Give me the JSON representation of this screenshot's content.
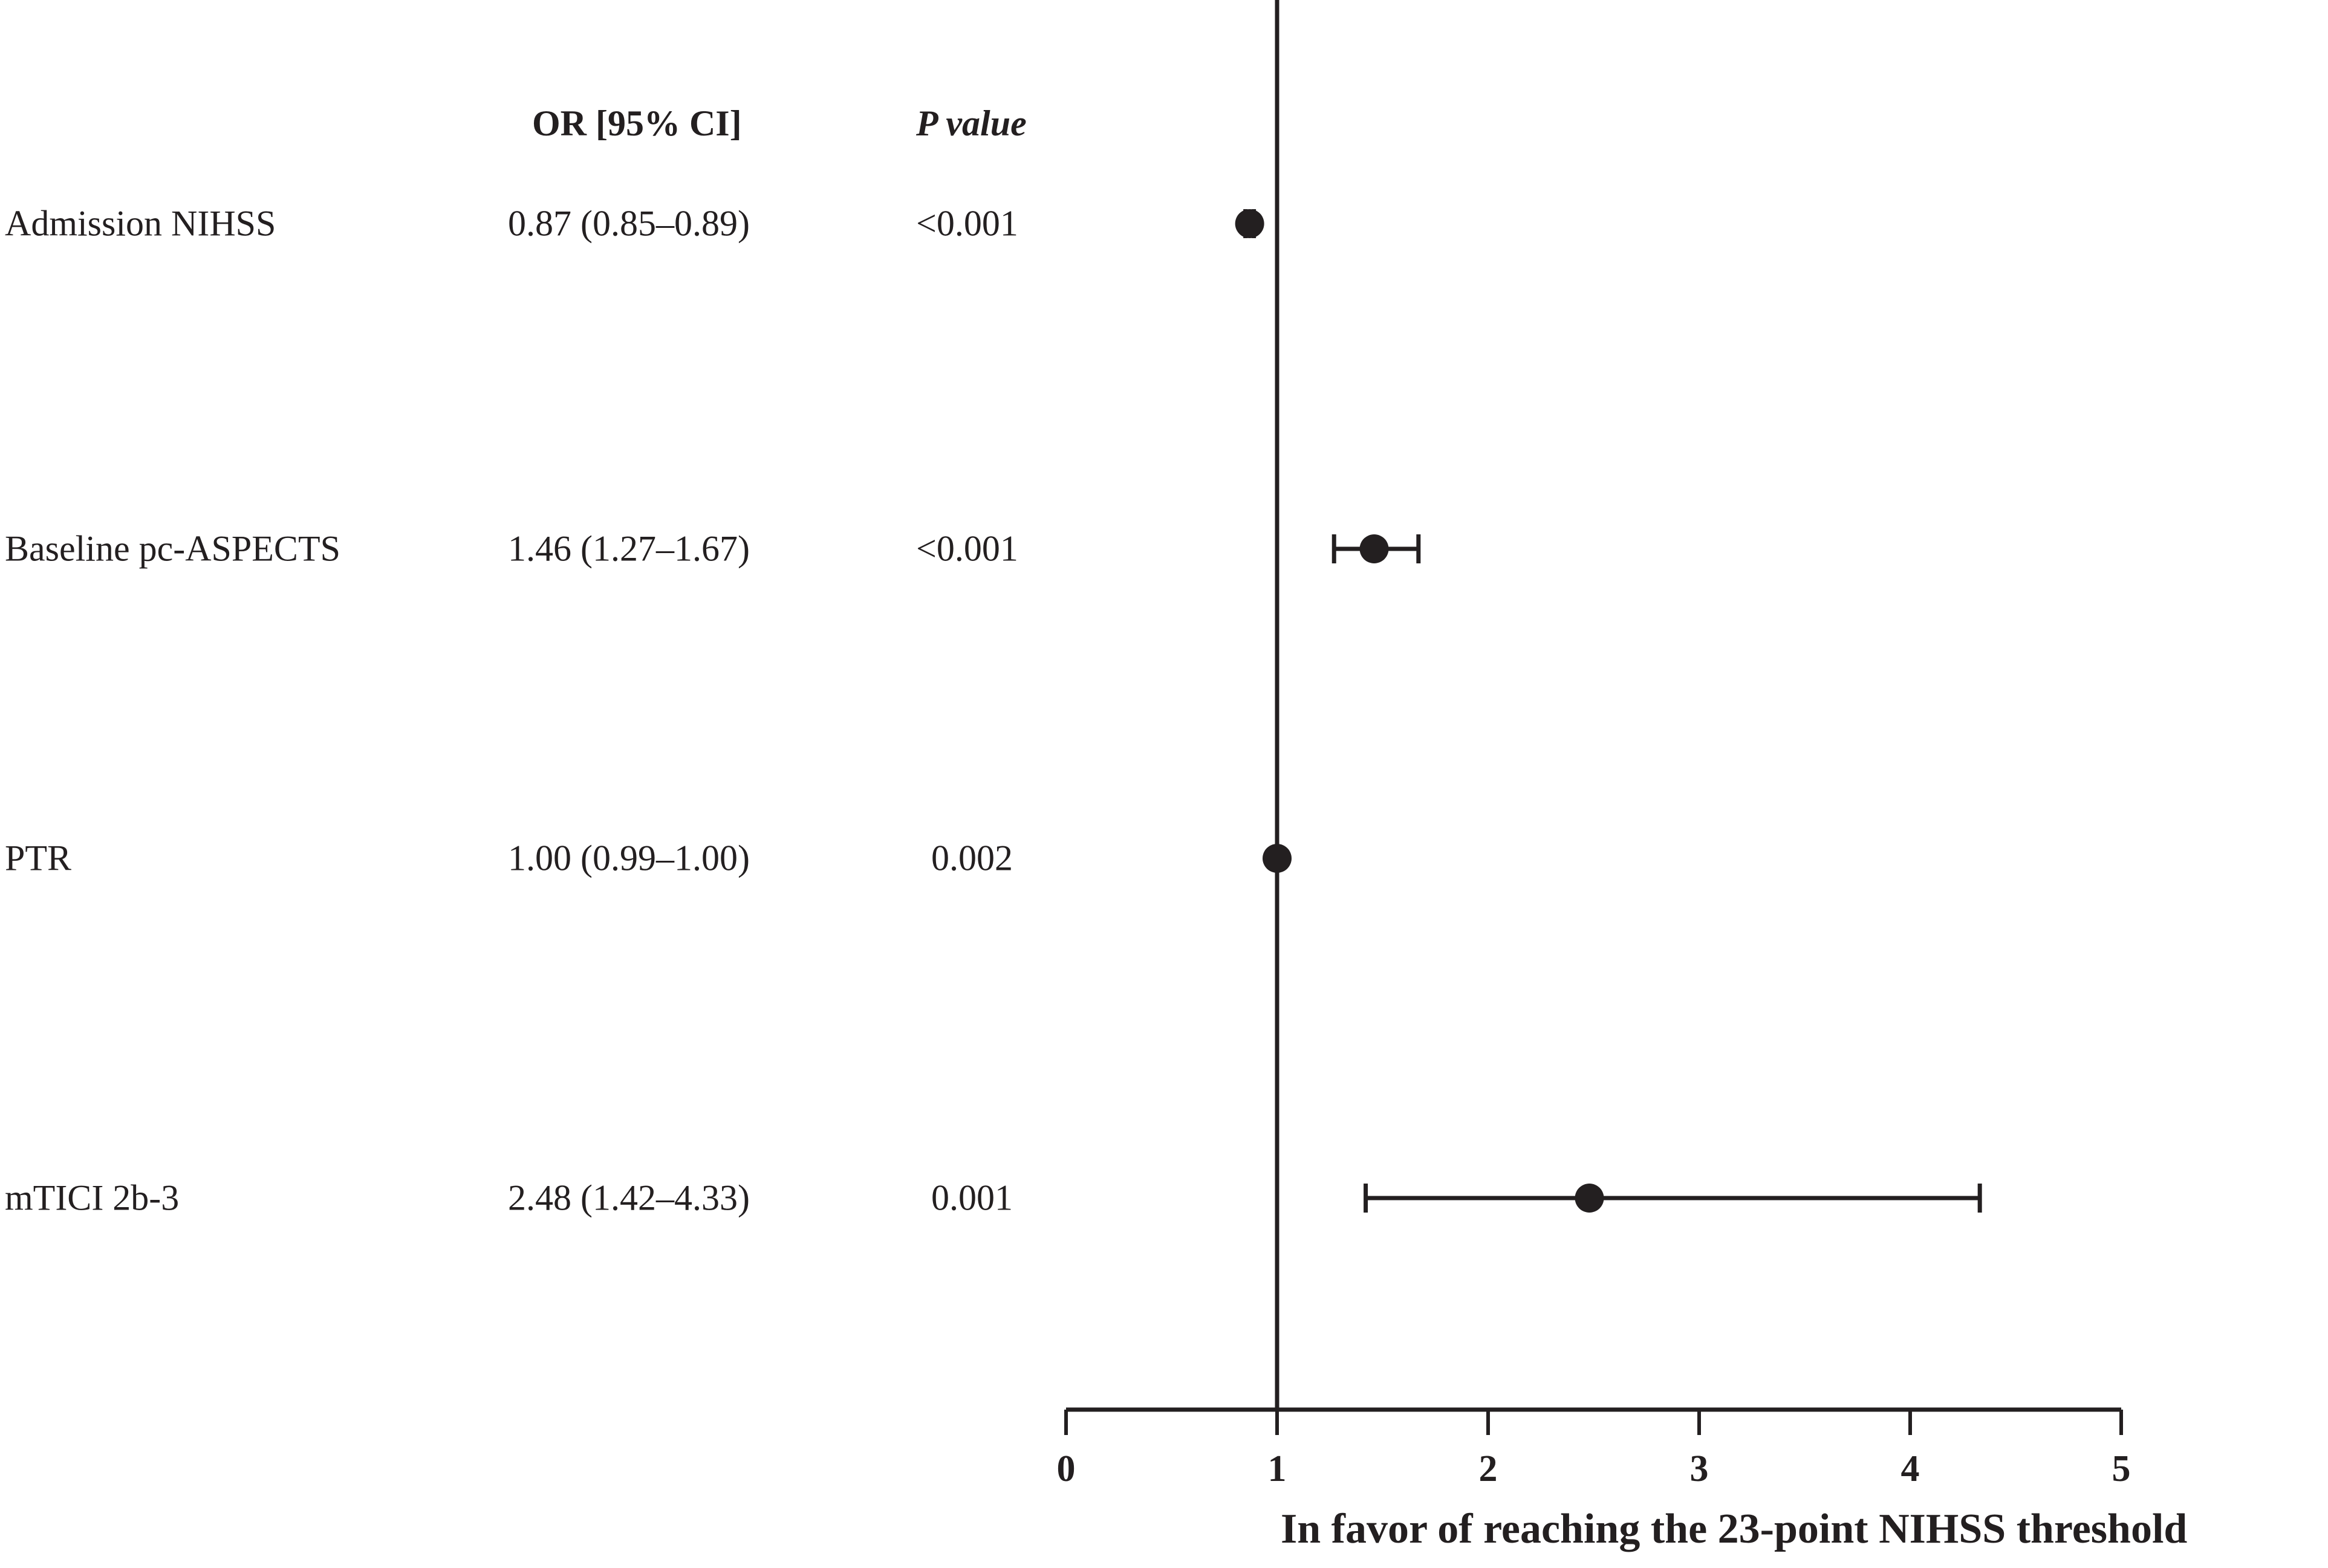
{
  "headers": {
    "or": "OR [95% CI]",
    "p": "P value"
  },
  "chart_data": {
    "type": "forest",
    "title": "",
    "xlabel": "In favor of reaching the 23-point NIHSS threshold",
    "xlim": [
      0,
      5
    ],
    "xticks": [
      "0",
      "1",
      "2",
      "3",
      "4",
      "5"
    ],
    "reference_line": 1,
    "rows": [
      {
        "label": "Admission NIHSS",
        "or_text": "0.87 (0.85–0.89)",
        "p_text": "<0.001",
        "or": 0.87,
        "ci": [
          0.85,
          0.89
        ]
      },
      {
        "label": "Baseline pc-ASPECTS",
        "or_text": "1.46 (1.27–1.67)",
        "p_text": "<0.001",
        "or": 1.46,
        "ci": [
          1.27,
          1.67
        ]
      },
      {
        "label": "PTR",
        "or_text": "1.00 (0.99–1.00)",
        "p_text": "0.002",
        "or": 1.0,
        "ci": [
          0.99,
          1.0
        ]
      },
      {
        "label": "mTICI 2b-3",
        "or_text": "2.48 (1.42–4.33)",
        "p_text": "0.001",
        "or": 2.48,
        "ci": [
          1.42,
          4.33
        ]
      }
    ]
  }
}
